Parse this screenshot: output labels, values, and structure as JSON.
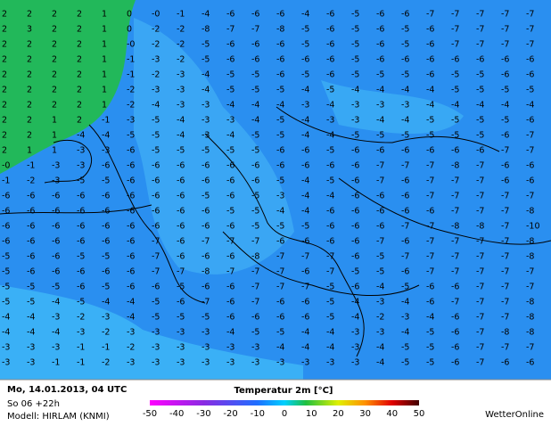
{
  "map": {
    "grid": [
      [
        "2",
        "2",
        "2",
        "2",
        "1",
        "0",
        "-0",
        "-1",
        "-4",
        "-6",
        "-6",
        "-6",
        "-4",
        "-6",
        "-5",
        "-6",
        "-6",
        "-7",
        "-7",
        "-7",
        "-7",
        "-7"
      ],
      [
        "2",
        "3",
        "2",
        "2",
        "1",
        "0",
        "-2",
        "-2",
        "-8",
        "-7",
        "-7",
        "-8",
        "-5",
        "-6",
        "-5",
        "-6",
        "-5",
        "-6",
        "-7",
        "-7",
        "-7",
        "-7"
      ],
      [
        "2",
        "2",
        "2",
        "2",
        "1",
        "-0",
        "-2",
        "-2",
        "-5",
        "-6",
        "-6",
        "-6",
        "-5",
        "-6",
        "-5",
        "-6",
        "-5",
        "-6",
        "-7",
        "-7",
        "-7",
        "-7"
      ],
      [
        "2",
        "2",
        "2",
        "2",
        "1",
        "-1",
        "-3",
        "-2",
        "-5",
        "-6",
        "-6",
        "-6",
        "-6",
        "-6",
        "-5",
        "-6",
        "-6",
        "-6",
        "-6",
        "-6",
        "-6",
        "-6"
      ],
      [
        "2",
        "2",
        "2",
        "2",
        "1",
        "-1",
        "-2",
        "-3",
        "-4",
        "-5",
        "-5",
        "-6",
        "-5",
        "-6",
        "-5",
        "-5",
        "-5",
        "-6",
        "-5",
        "-5",
        "-6",
        "-6"
      ],
      [
        "2",
        "2",
        "2",
        "2",
        "1",
        "-2",
        "-3",
        "-3",
        "-4",
        "-5",
        "-5",
        "-5",
        "-4",
        "-5",
        "-4",
        "-4",
        "-4",
        "-4",
        "-5",
        "-5",
        "-5",
        "-5"
      ],
      [
        "2",
        "2",
        "2",
        "2",
        "1",
        "-2",
        "-4",
        "-3",
        "-3",
        "-4",
        "-4",
        "-4",
        "-3",
        "-4",
        "-3",
        "-3",
        "-3",
        "-4",
        "-4",
        "-4",
        "-4",
        "-4"
      ],
      [
        "2",
        "2",
        "1",
        "2",
        "-1",
        "-3",
        "-5",
        "-4",
        "-3",
        "-3",
        "-4",
        "-5",
        "-4",
        "-3",
        "-3",
        "-4",
        "-4",
        "-5",
        "-5",
        "-5",
        "-5",
        "-6"
      ],
      [
        "2",
        "2",
        "1",
        "-4",
        "-4",
        "-5",
        "-5",
        "-4",
        "-3",
        "-4",
        "-5",
        "-5",
        "-4",
        "-4",
        "-5",
        "-5",
        "-5",
        "-5",
        "-5",
        "-5",
        "-6",
        "-7"
      ],
      [
        "2",
        "1",
        "1",
        "-3",
        "-3",
        "-6",
        "-5",
        "-5",
        "-5",
        "-5",
        "-5",
        "-6",
        "-6",
        "-5",
        "-6",
        "-6",
        "-6",
        "-6",
        "-6",
        "-6",
        "-7",
        "-7"
      ],
      [
        "-0",
        "-1",
        "-3",
        "-3",
        "-6",
        "-6",
        "-6",
        "-6",
        "-6",
        "-6",
        "-6",
        "-6",
        "-6",
        "-6",
        "-6",
        "-7",
        "-7",
        "-7",
        "-8",
        "-7",
        "-6",
        "-6"
      ],
      [
        "-1",
        "-2",
        "-3",
        "-5",
        "-5",
        "-6",
        "-6",
        "-6",
        "-6",
        "-6",
        "-6",
        "-5",
        "-4",
        "-5",
        "-6",
        "-7",
        "-6",
        "-7",
        "-7",
        "-7",
        "-6",
        "-6"
      ],
      [
        "-6",
        "-6",
        "-6",
        "-6",
        "-6",
        "-6",
        "-6",
        "-6",
        "-5",
        "-6",
        "-5",
        "-3",
        "-4",
        "-4",
        "-6",
        "-6",
        "-6",
        "-7",
        "-7",
        "-7",
        "-7",
        "-7"
      ],
      [
        "-6",
        "-6",
        "-6",
        "-6",
        "-6",
        "-6",
        "-6",
        "-6",
        "-6",
        "-5",
        "-5",
        "-4",
        "-4",
        "-6",
        "-6",
        "-6",
        "-6",
        "-6",
        "-7",
        "-7",
        "-7",
        "-8"
      ],
      [
        "-6",
        "-6",
        "-6",
        "-6",
        "-6",
        "-6",
        "-6",
        "-6",
        "-6",
        "-6",
        "-5",
        "-5",
        "-5",
        "-6",
        "-6",
        "-6",
        "-7",
        "-7",
        "-8",
        "-8",
        "-7",
        "-10"
      ],
      [
        "-6",
        "-6",
        "-6",
        "-6",
        "-6",
        "-6",
        "-7",
        "-6",
        "-7",
        "-7",
        "-7",
        "-6",
        "-6",
        "-6",
        "-6",
        "-7",
        "-6",
        "-7",
        "-7",
        "-7",
        "-7",
        "-8"
      ],
      [
        "-5",
        "-6",
        "-6",
        "-5",
        "-5",
        "-6",
        "-7",
        "-6",
        "-6",
        "-6",
        "-8",
        "-7",
        "-7",
        "-7",
        "-6",
        "-5",
        "-7",
        "-7",
        "-7",
        "-7",
        "-7",
        "-8"
      ],
      [
        "-5",
        "-6",
        "-6",
        "-6",
        "-6",
        "-6",
        "-7",
        "-7",
        "-8",
        "-7",
        "-7",
        "-7",
        "-6",
        "-7",
        "-5",
        "-5",
        "-6",
        "-7",
        "-7",
        "-7",
        "-7",
        "-7"
      ],
      [
        "-5",
        "-5",
        "-5",
        "-6",
        "-5",
        "-6",
        "-6",
        "-5",
        "-6",
        "-6",
        "-7",
        "-7",
        "-7",
        "-5",
        "-6",
        "-4",
        "-5",
        "-6",
        "-6",
        "-7",
        "-7",
        "-7"
      ],
      [
        "-5",
        "-5",
        "-4",
        "-5",
        "-4",
        "-4",
        "-5",
        "-6",
        "-7",
        "-6",
        "-7",
        "-6",
        "-6",
        "-5",
        "-4",
        "-3",
        "-4",
        "-6",
        "-7",
        "-7",
        "-7",
        "-8"
      ],
      [
        "-4",
        "-4",
        "-3",
        "-2",
        "-3",
        "-4",
        "-5",
        "-5",
        "-5",
        "-6",
        "-6",
        "-6",
        "-6",
        "-5",
        "-4",
        "-2",
        "-3",
        "-4",
        "-6",
        "-7",
        "-7",
        "-8"
      ],
      [
        "-4",
        "-4",
        "-4",
        "-3",
        "-2",
        "-3",
        "-3",
        "-3",
        "-3",
        "-4",
        "-5",
        "-5",
        "-4",
        "-4",
        "-3",
        "-3",
        "-4",
        "-5",
        "-6",
        "-7",
        "-8",
        "-8"
      ],
      [
        "-3",
        "-3",
        "-3",
        "-1",
        "-1",
        "-2",
        "-3",
        "-3",
        "-3",
        "-3",
        "-3",
        "-4",
        "-4",
        "-4",
        "-3",
        "-4",
        "-5",
        "-5",
        "-6",
        "-7",
        "-7",
        "-7"
      ],
      [
        "-3",
        "-3",
        "-1",
        "-1",
        "-2",
        "-3",
        "-3",
        "-3",
        "-3",
        "-3",
        "-3",
        "-3",
        "-3",
        "-3",
        "-3",
        "-4",
        "-5",
        "-5",
        "-6",
        "-7",
        "-6",
        "-6"
      ]
    ]
  },
  "footer": {
    "date": "Mo, 14.01.2013, 04 UTC",
    "run": "So 06 +22h",
    "model": "Modell: HIRLAM (KNMI)",
    "title": "Temperatur 2m [°C]",
    "scale_labels": [
      "-50",
      "-40",
      "-30",
      "-20",
      "-10",
      "0",
      "10",
      "20",
      "30",
      "40",
      "50"
    ],
    "brand": "WetterOnline"
  }
}
